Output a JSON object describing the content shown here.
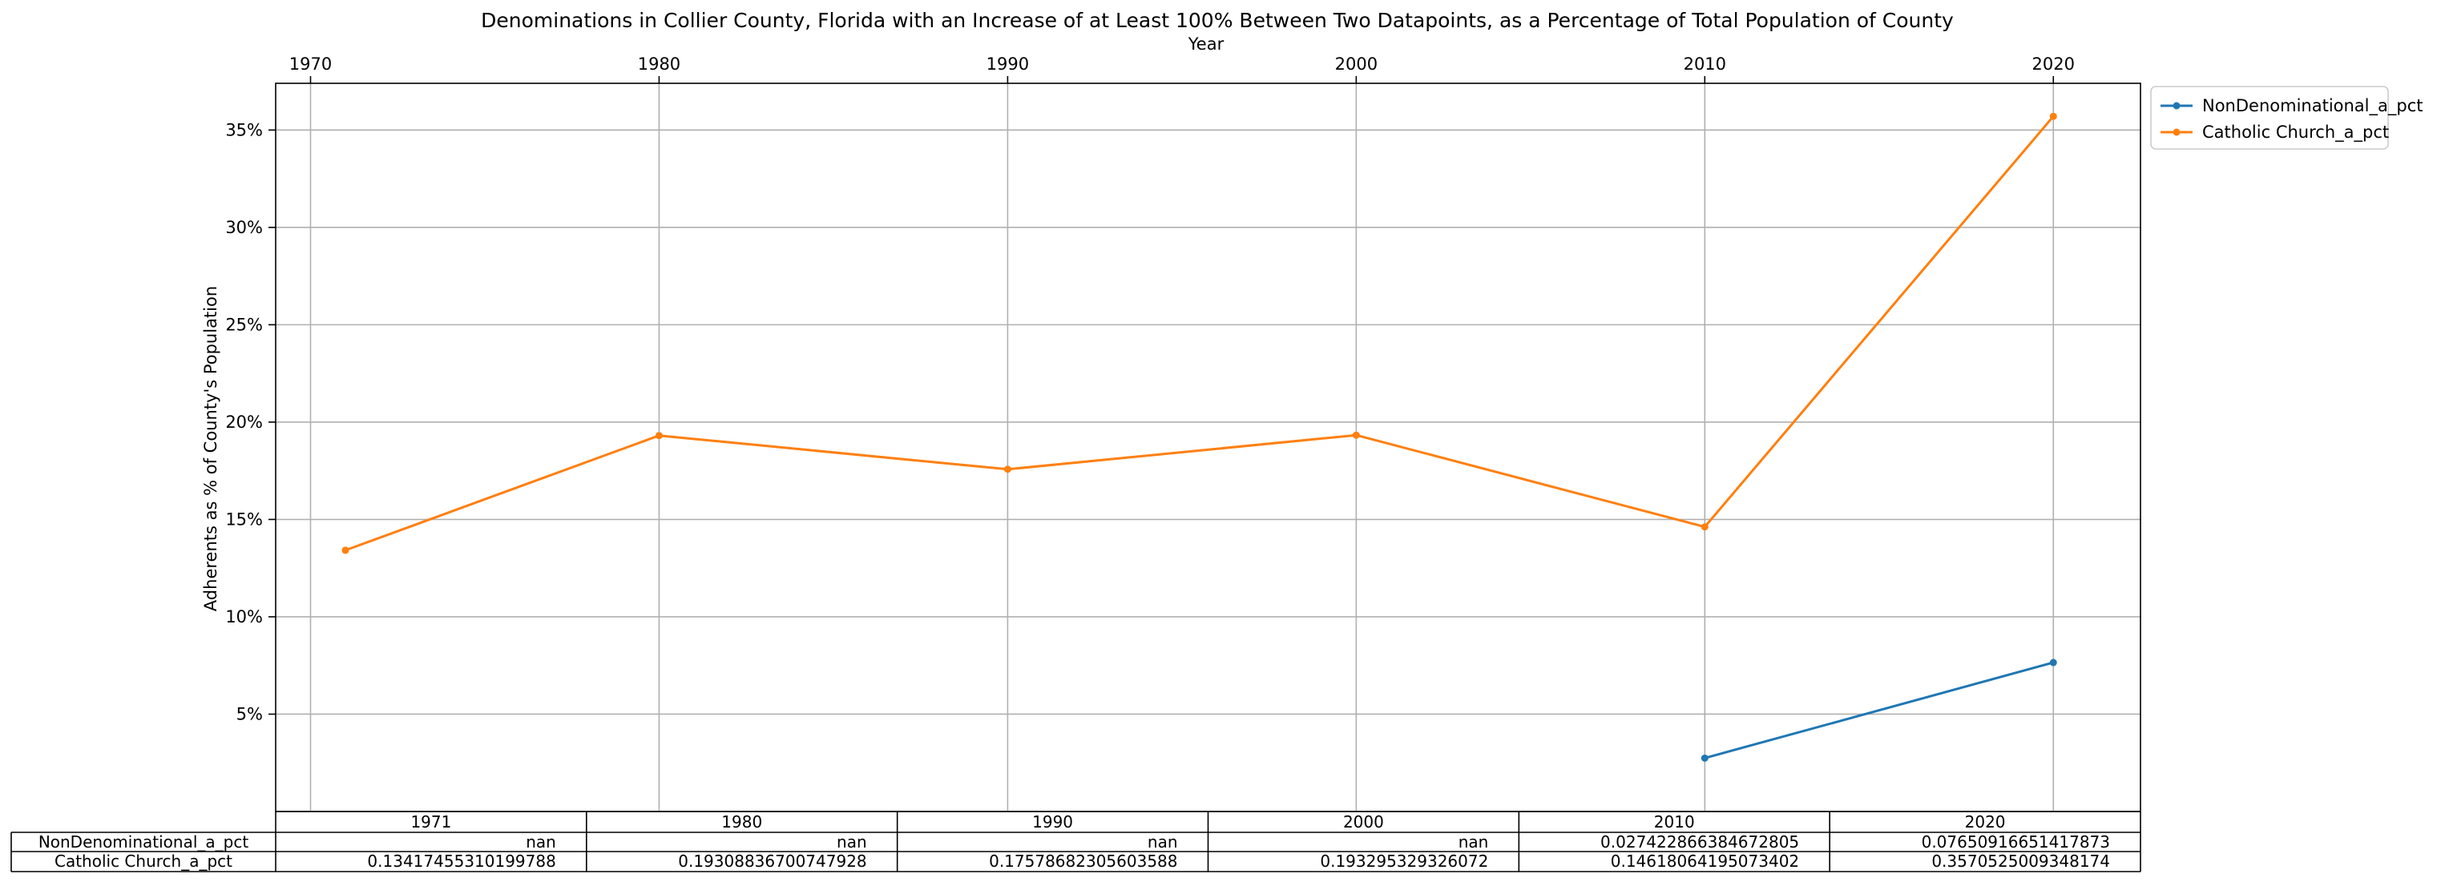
{
  "chart_data": {
    "type": "line",
    "title": "Denominations in Collier County, Florida with an Increase of at Least 100% Between Two Datapoints, as a Percentage of Total Population of County",
    "xlabel": "Year",
    "ylabel": "Adherents as % of County's Population",
    "x_axis_position": "top",
    "x_ticks": [
      1970,
      1980,
      1990,
      2000,
      2010,
      2020
    ],
    "xlim": [
      1969,
      2022.5
    ],
    "ylim": [
      0,
      0.374
    ],
    "y_ticks": [
      0.05,
      0.1,
      0.15,
      0.2,
      0.25,
      0.3,
      0.35
    ],
    "y_tick_labels": [
      "5%",
      "10%",
      "15%",
      "20%",
      "25%",
      "30%",
      "35%"
    ],
    "grid": true,
    "legend_position": "upper-right-outside",
    "x": [
      1971,
      1980,
      1990,
      2000,
      2010,
      2020
    ],
    "series": [
      {
        "name": "NonDenominational_a_pct",
        "color": "#1f77b4",
        "values": [
          null,
          null,
          null,
          null,
          0.027422866384672805,
          0.07650916651417873
        ]
      },
      {
        "name": "Catholic Church_a_pct",
        "color": "#ff7f0e",
        "values": [
          0.13417455310199788,
          0.19308836700747928,
          0.17578682305603588,
          0.193295329326072,
          0.14618064195073402,
          0.3570525009348174
        ]
      }
    ],
    "table": {
      "col_labels": [
        "1971",
        "1980",
        "1990",
        "2000",
        "2010",
        "2020"
      ],
      "rows": [
        {
          "label": "NonDenominational_a_pct",
          "cells": [
            "nan",
            "nan",
            "nan",
            "nan",
            "0.027422866384672805",
            "0.07650916651417873"
          ]
        },
        {
          "label": "Catholic Church_a_pct",
          "cells": [
            "0.13417455310199788",
            "0.19308836700747928",
            "0.17578682305603588",
            "0.193295329326072",
            "0.14618064195073402",
            "0.3570525009348174"
          ]
        }
      ]
    }
  }
}
